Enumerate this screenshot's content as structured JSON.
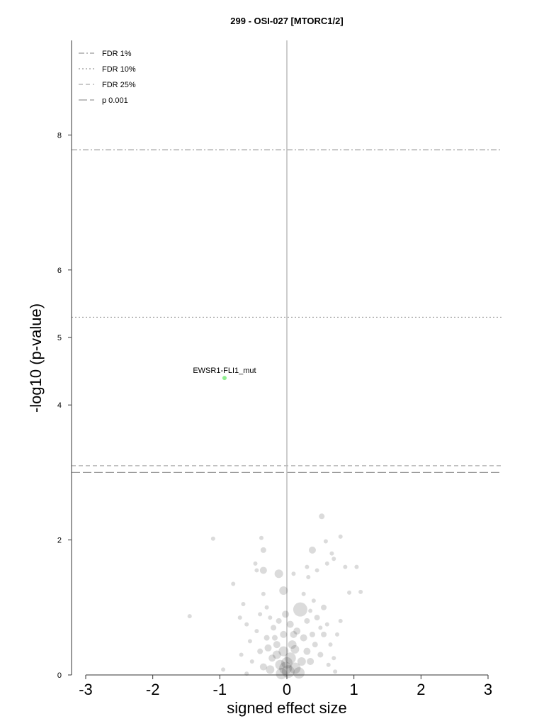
{
  "chart_data": {
    "type": "scatter",
    "title": "299 - OSI-027 [MTORC1/2]",
    "xlabel": "signed effect size",
    "ylabel": "-log10 (p-value)",
    "xlim": [
      -3.2,
      3.2
    ],
    "ylim": [
      0,
      9.4
    ],
    "xticks": [
      -3,
      -2,
      -1,
      0,
      1,
      2,
      3
    ],
    "yticks": [
      0,
      2,
      4,
      5,
      6,
      8
    ],
    "grid": false,
    "legend_position": "top-left",
    "thresholds": [
      {
        "name": "FDR 1%",
        "y": 7.78,
        "style": "dashdot",
        "color": "#999999"
      },
      {
        "name": "FDR 10%",
        "y": 5.3,
        "style": "dotted",
        "color": "#999999"
      },
      {
        "name": "FDR 25%",
        "y": 3.1,
        "style": "dashed",
        "color": "#aaaaaa"
      },
      {
        "name": "p 0.001",
        "y": 3.0,
        "style": "longdash",
        "color": "#999999"
      }
    ],
    "highlighted": [
      {
        "label": "EWSR1-FLI1_mut",
        "x": -0.93,
        "y": 4.4,
        "color": "#90ee90"
      }
    ],
    "points": [
      [
        -1.45,
        0.87,
        3
      ],
      [
        -1.1,
        2.02,
        3
      ],
      [
        -0.95,
        0.08,
        3
      ],
      [
        -0.8,
        1.35,
        3
      ],
      [
        -0.38,
        2.03,
        3
      ],
      [
        -0.35,
        1.85,
        4
      ],
      [
        -0.35,
        1.55,
        5
      ],
      [
        -0.47,
        1.65,
        3
      ],
      [
        -0.45,
        1.55,
        3
      ],
      [
        -0.12,
        1.5,
        6
      ],
      [
        -0.05,
        1.25,
        6
      ],
      [
        0.1,
        1.5,
        3
      ],
      [
        0.2,
        0.97,
        10
      ],
      [
        0.52,
        2.35,
        4
      ],
      [
        0.58,
        1.98,
        3
      ],
      [
        0.38,
        1.85,
        5
      ],
      [
        0.8,
        2.05,
        3
      ],
      [
        0.67,
        1.8,
        3
      ],
      [
        0.7,
        1.72,
        3
      ],
      [
        0.87,
        1.6,
        3
      ],
      [
        1.04,
        1.6,
        3
      ],
      [
        1.1,
        1.23,
        3
      ],
      [
        0.93,
        1.22,
        3
      ],
      [
        0.3,
        1.6,
        3
      ],
      [
        0.32,
        1.45,
        3
      ],
      [
        0.45,
        1.55,
        3
      ],
      [
        0.6,
        1.65,
        3
      ],
      [
        0.55,
        1.0,
        4
      ],
      [
        -0.65,
        1.05,
        3
      ],
      [
        -0.7,
        0.85,
        3
      ],
      [
        -0.6,
        0.75,
        3
      ],
      [
        -0.55,
        0.5,
        3
      ],
      [
        -0.68,
        0.3,
        3
      ],
      [
        -0.52,
        0.2,
        3
      ],
      [
        -0.3,
        1.0,
        3
      ],
      [
        -0.25,
        0.85,
        3
      ],
      [
        -0.2,
        0.7,
        4
      ],
      [
        -0.3,
        0.55,
        4
      ],
      [
        -0.15,
        0.45,
        5
      ],
      [
        -0.22,
        0.25,
        5
      ],
      [
        -0.1,
        0.15,
        7
      ],
      [
        -0.05,
        0.35,
        7
      ],
      [
        0.05,
        0.25,
        8
      ],
      [
        0.12,
        0.1,
        8
      ],
      [
        0.08,
        0.45,
        6
      ],
      [
        0.15,
        0.65,
        5
      ],
      [
        0.25,
        0.55,
        5
      ],
      [
        0.3,
        0.35,
        5
      ],
      [
        0.35,
        0.2,
        5
      ],
      [
        0.42,
        0.45,
        4
      ],
      [
        0.5,
        0.3,
        4
      ],
      [
        0.55,
        0.6,
        4
      ],
      [
        0.6,
        0.75,
        3
      ],
      [
        0.65,
        0.45,
        3
      ],
      [
        0.7,
        0.25,
        3
      ],
      [
        0.75,
        0.6,
        3
      ],
      [
        0.8,
        0.8,
        3
      ],
      [
        0.45,
        0.85,
        4
      ],
      [
        0.35,
        0.95,
        3
      ],
      [
        0.02,
        0.05,
        9
      ],
      [
        -0.02,
        0.1,
        9
      ],
      [
        0.0,
        0.18,
        8
      ],
      [
        -0.08,
        0.02,
        8
      ],
      [
        0.18,
        0.03,
        8
      ],
      [
        0.22,
        0.2,
        6
      ],
      [
        -0.25,
        0.08,
        6
      ],
      [
        -0.35,
        0.12,
        5
      ],
      [
        -0.4,
        0.35,
        4
      ],
      [
        -0.45,
        0.65,
        3
      ],
      [
        -0.4,
        0.9,
        3
      ],
      [
        -0.35,
        1.2,
        3
      ],
      [
        0.25,
        1.2,
        3
      ],
      [
        0.4,
        1.1,
        3
      ],
      [
        0.5,
        0.7,
        3
      ],
      [
        -0.18,
        0.55,
        4
      ],
      [
        0.1,
        0.6,
        5
      ],
      [
        -0.12,
        0.8,
        4
      ],
      [
        0.05,
        0.75,
        5
      ],
      [
        -0.02,
        0.9,
        5
      ],
      [
        0.3,
        0.8,
        4
      ],
      [
        0.62,
        0.15,
        3
      ],
      [
        -0.6,
        0.02,
        3
      ],
      [
        0.72,
        0.05,
        3
      ],
      [
        -0.15,
        0.3,
        6
      ],
      [
        0.12,
        0.38,
        6
      ],
      [
        -0.05,
        0.6,
        5
      ],
      [
        0.38,
        0.6,
        4
      ],
      [
        -0.28,
        0.4,
        5
      ]
    ]
  }
}
